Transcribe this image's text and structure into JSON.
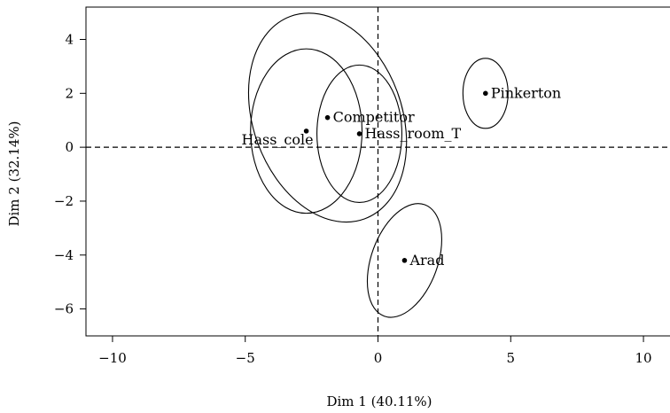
{
  "chart_data": {
    "type": "scatter",
    "title": "",
    "xlabel": "Dim 1 (40.11%)",
    "ylabel": "Dim 2 (32.14%)",
    "xlim": [
      -11,
      11
    ],
    "ylim": [
      -7,
      5.2
    ],
    "xticks": [
      -10,
      -5,
      0,
      5,
      10
    ],
    "yticks": [
      -6,
      -4,
      -2,
      0,
      2,
      4
    ],
    "xtick_labels": [
      "−10",
      "−5",
      "0",
      "5",
      "10"
    ],
    "ytick_labels": [
      "−6",
      "−4",
      "−2",
      "0",
      "2",
      "4"
    ],
    "reference_lines": {
      "x": 0,
      "y": 0,
      "style": "dashed"
    },
    "grid": false,
    "points": [
      {
        "label": "Pinkerton",
        "x": 4.05,
        "y": 2.0
      },
      {
        "label": "Competitor",
        "x": -1.9,
        "y": 1.1
      },
      {
        "label": "Hass_room_T",
        "x": -0.7,
        "y": 0.5
      },
      {
        "label": "Hass_cole",
        "x": -2.7,
        "y": 0.6
      },
      {
        "label": "Arad",
        "x": 1.0,
        "y": -4.2
      }
    ],
    "ellipses": [
      {
        "for": "Pinkerton",
        "cx": 4.05,
        "cy": 2.0,
        "rx": 0.85,
        "ry": 1.3,
        "angle": 0
      },
      {
        "for": "Competitor",
        "cx": -1.9,
        "cy": 1.1,
        "rx": 2.8,
        "ry": 4.0,
        "angle": -20
      },
      {
        "for": "Hass_room_T",
        "cx": -0.7,
        "cy": 0.5,
        "rx": 1.6,
        "ry": 2.55,
        "angle": 0
      },
      {
        "for": "Hass_cole",
        "cx": -2.7,
        "cy": 0.6,
        "rx": 2.1,
        "ry": 3.05,
        "angle": 0
      },
      {
        "for": "Arad",
        "cx": 1.0,
        "cy": -4.2,
        "rx": 1.25,
        "ry": 2.2,
        "angle": 20
      }
    ]
  }
}
